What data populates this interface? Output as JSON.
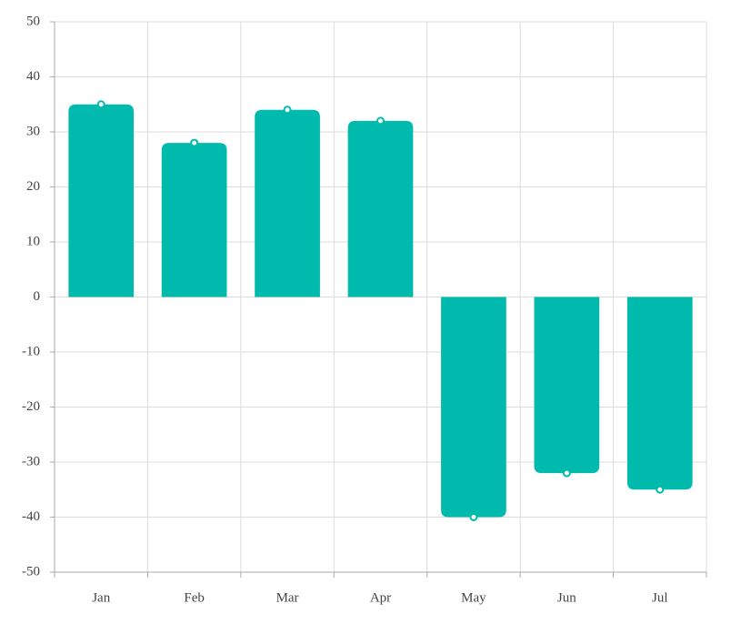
{
  "chart_data": {
    "type": "bar",
    "categories": [
      "Jan",
      "Feb",
      "Mar",
      "Apr",
      "May",
      "Jun",
      "Jul"
    ],
    "values": [
      35,
      28,
      34,
      32,
      -40,
      -32,
      -35
    ],
    "color": "#00bbad",
    "ylim": [
      -50,
      50
    ],
    "yticks": [
      -50,
      -40,
      -30,
      -20,
      -10,
      0,
      10,
      20,
      30,
      40,
      50
    ],
    "grid": true,
    "markers": true
  }
}
